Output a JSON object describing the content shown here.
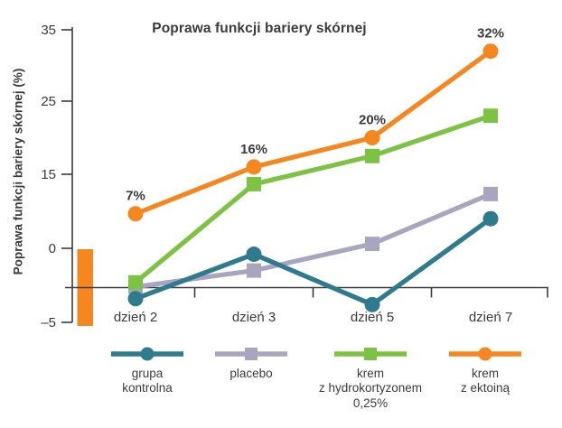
{
  "chart_data": {
    "type": "line",
    "title": "Poprawa funkcji bariery skórnej",
    "ylabel": "Poprawa funkcji bariery skórnej (%)",
    "xlabel": "",
    "categories": [
      "dzień 2",
      "dzień 3",
      "dzień 5",
      "dzień 7"
    ],
    "y_ticks": [
      35,
      25,
      15,
      0,
      -5
    ],
    "y_tick_labels": [
      "35",
      "25",
      "15",
      "0",
      "–5"
    ],
    "grid": false,
    "legend_position": "bottom",
    "axis_color": "#3c3c3e",
    "text_color": "#3b3b3d",
    "negative_zone_bar_color": "#f6861f",
    "series": [
      {
        "name": "grupa kontrolna",
        "legend_lines": [
          "grupa",
          "kontrolna"
        ],
        "color": "#2f7a8c",
        "marker": "circle",
        "values": [
          -3.4,
          -0.4,
          -3.8,
          6
        ]
      },
      {
        "name": "placebo",
        "legend_lines": [
          "placebo"
        ],
        "color": "#a8a6be",
        "marker": "square",
        "values": [
          -2.6,
          -1.5,
          0.9,
          11
        ]
      },
      {
        "name": "krem z hydrokortyzonem 0,25%",
        "legend_lines": [
          "krem",
          "z hydrokortyzonem",
          "0,25%"
        ],
        "color": "#7dc242",
        "marker": "square",
        "values": [
          -2.3,
          13,
          17.5,
          23
        ]
      },
      {
        "name": "krem z ektoiną",
        "legend_lines": [
          "krem",
          "z ektoiną"
        ],
        "color": "#f6861f",
        "marker": "circle",
        "values": [
          7,
          16,
          20,
          32
        ],
        "point_labels": [
          "7%",
          "16%",
          "20%",
          "32%"
        ]
      }
    ]
  }
}
